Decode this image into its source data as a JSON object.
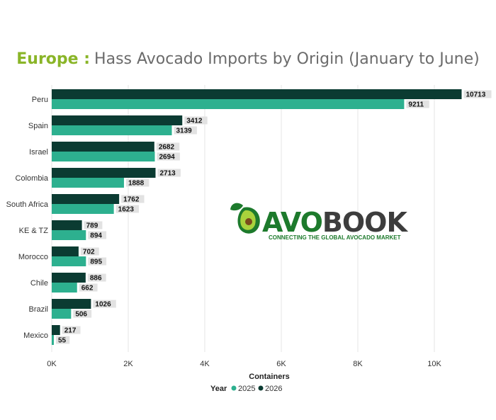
{
  "chart_data": {
    "type": "bar",
    "orientation": "horizontal",
    "title_prefix": "Europe :",
    "title_main": "Hass Avocado Imports by Origin (January to June)",
    "xlabel": "Containers",
    "ylabel": "",
    "categories": [
      "Peru",
      "Spain",
      "Israel",
      "Colombia",
      "South Africa",
      "KE & TZ",
      "Morocco",
      "Chile",
      "Brazil",
      "Mexico"
    ],
    "series": [
      {
        "name": "2026",
        "values": [
          10713,
          3412,
          2682,
          2713,
          1762,
          789,
          702,
          886,
          1026,
          217
        ],
        "color": "#0b3b32"
      },
      {
        "name": "2025",
        "values": [
          9211,
          3139,
          2694,
          1888,
          1623,
          894,
          895,
          662,
          506,
          55
        ],
        "color": "#2db08f"
      }
    ],
    "xlim": [
      0,
      11000
    ],
    "x_ticks": [
      0,
      2000,
      4000,
      6000,
      8000,
      10000
    ],
    "x_tick_labels": [
      "0K",
      "2K",
      "4K",
      "6K",
      "8K",
      "10K"
    ],
    "grid": true,
    "legend": {
      "title": "Year",
      "items": [
        "2025",
        "2026"
      ],
      "placement": "bottom"
    },
    "colors": {
      "accent": "#8ab528",
      "title": "#6b6b6b",
      "label_bg": "#e2e2e2"
    }
  },
  "logo": {
    "name": "AVOBOOK",
    "wordmark_a": "AVO",
    "wordmark_b": "BOOK",
    "tagline": "CONNECTING THE GLOBAL AVOCADO MARKET",
    "icon": "avocado-icon"
  }
}
